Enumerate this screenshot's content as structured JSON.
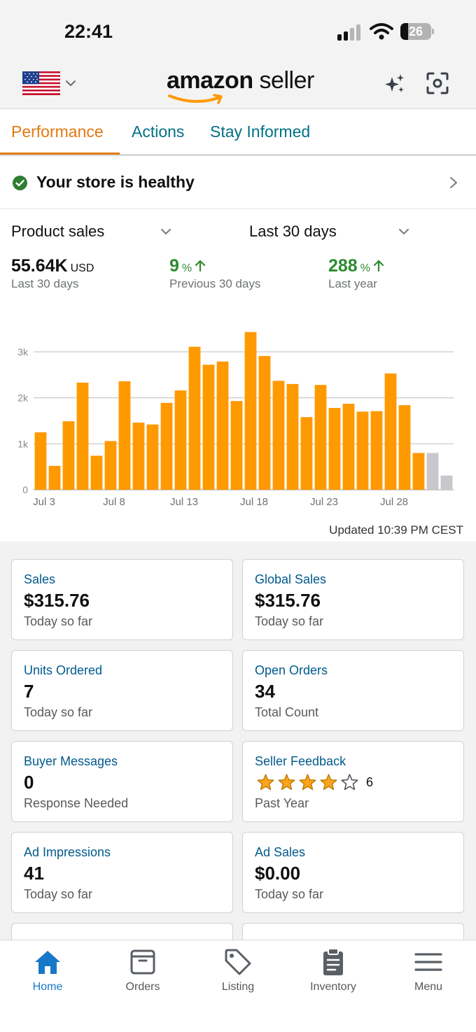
{
  "status_bar": {
    "time": "22:41",
    "battery": "26"
  },
  "header": {
    "logo_bold": "amazon",
    "logo_light": "seller",
    "icons": [
      "us-flag-icon",
      "chevron-down-icon",
      "sparkle-icon",
      "scan-icon"
    ]
  },
  "tabs": [
    {
      "label": "Performance",
      "active": true
    },
    {
      "label": "Actions",
      "active": false
    },
    {
      "label": "Stay Informed",
      "active": false
    }
  ],
  "health": {
    "text": "Your store is healthy"
  },
  "selectors": {
    "metric": "Product sales",
    "range": "Last 30 days"
  },
  "metrics": [
    {
      "value": "55.64K",
      "unit": "USD",
      "label": "Last 30 days"
    },
    {
      "value": "9",
      "unit": "%",
      "label": "Previous 30 days"
    },
    {
      "value": "288",
      "unit": "%",
      "label": "Last year"
    }
  ],
  "chart_data": {
    "type": "bar",
    "y_ticks": [
      "0",
      "1k",
      "2k",
      "3k"
    ],
    "x_ticks": [
      "Jul 3",
      "Jul 8",
      "Jul 13",
      "Jul 18",
      "Jul 23",
      "Jul 28"
    ],
    "ylim": [
      0,
      3500
    ],
    "colors": {
      "bar": "#ff9900",
      "pending": "#c8c8cc"
    },
    "series": [
      {
        "values": [
          1250,
          520,
          1490,
          2330,
          740,
          1060,
          2360,
          1460,
          1420,
          1890,
          2160,
          3110,
          2720,
          2790,
          1930,
          3430,
          2910,
          2370,
          2300,
          1580,
          2280,
          1780,
          1870,
          1700,
          1710,
          2530,
          1840,
          800
        ]
      },
      {
        "values": [
          null,
          null,
          null,
          null,
          null,
          null,
          null,
          null,
          null,
          null,
          null,
          null,
          null,
          null,
          null,
          null,
          null,
          null,
          null,
          null,
          null,
          null,
          null,
          null,
          null,
          null,
          null,
          null,
          800,
          310
        ]
      }
    ],
    "grid": true
  },
  "updated_text": "Updated 10:39 PM CEST",
  "cards": [
    {
      "title": "Sales",
      "value": "$315.76",
      "sub": "Today so far"
    },
    {
      "title": "Global Sales",
      "value": "$315.76",
      "sub": "Today so far"
    },
    {
      "title": "Units Ordered",
      "value": "7",
      "sub": "Today so far"
    },
    {
      "title": "Open Orders",
      "value": "34",
      "sub": "Total Count"
    },
    {
      "title": "Buyer Messages",
      "value": "0",
      "sub": "Response Needed"
    },
    {
      "title": "Seller Feedback",
      "rating": 4,
      "count": "6",
      "sub": "Past Year"
    },
    {
      "title": "Ad Impressions",
      "value": "41",
      "sub": "Today so far"
    },
    {
      "title": "Ad Sales",
      "value": "$0.00",
      "sub": "Today so far"
    }
  ],
  "nav": [
    {
      "label": "Home",
      "icon": "home-icon",
      "active": true
    },
    {
      "label": "Orders",
      "icon": "orders-icon",
      "active": false
    },
    {
      "label": "Listing",
      "icon": "tag-icon",
      "active": false
    },
    {
      "label": "Inventory",
      "icon": "clipboard-icon",
      "active": false
    },
    {
      "label": "Menu",
      "icon": "menu-icon",
      "active": false
    }
  ]
}
